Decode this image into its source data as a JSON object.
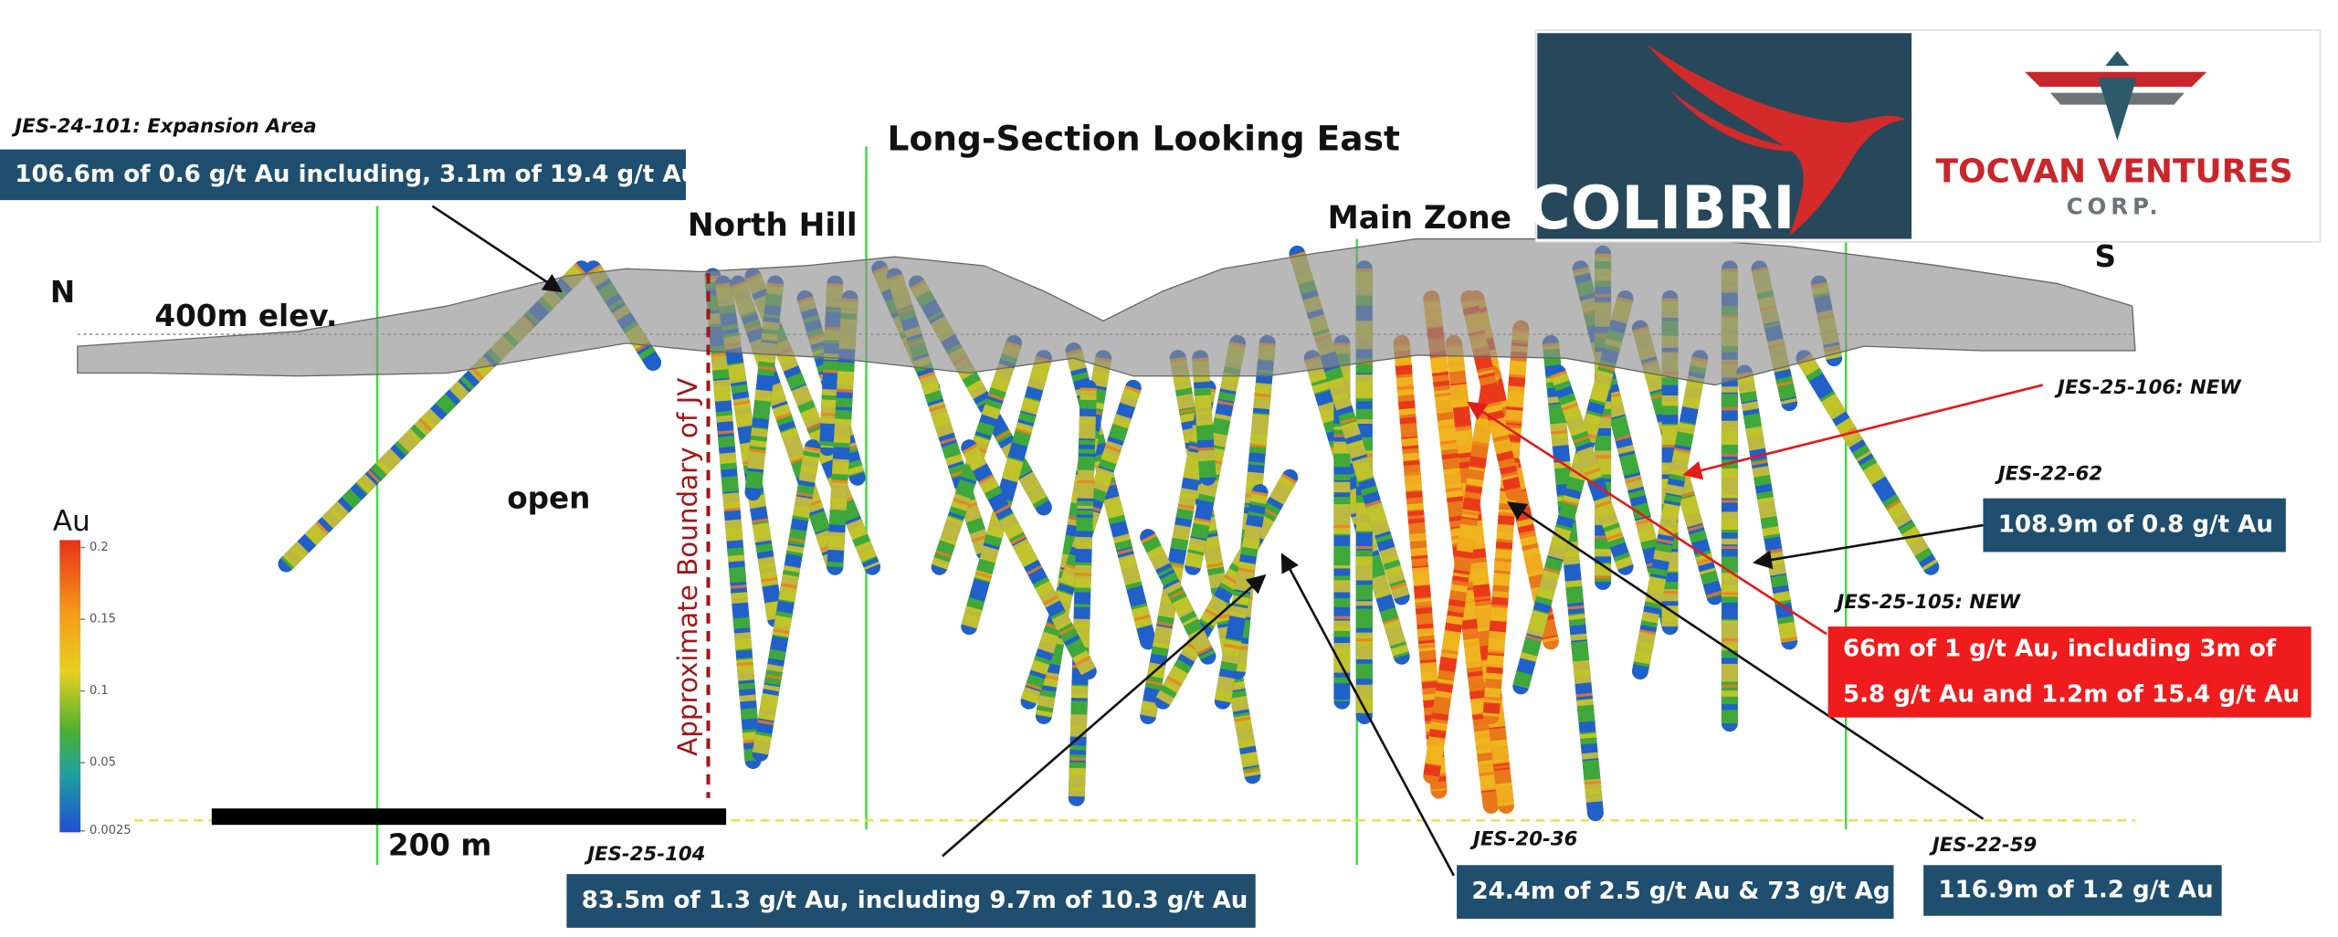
{
  "title": "Long-Section Looking East",
  "labels": {
    "north_hill": "North Hill",
    "main_zone": "Main Zone",
    "north": "N",
    "south": "S",
    "elevation": "400m elev.",
    "open": "open",
    "boundary": "Approximate Boundary of JV",
    "scale": "200 m"
  },
  "legend": {
    "title": "Au",
    "ticks": [
      0.2,
      0.15,
      0.1,
      0.05,
      0.0025
    ]
  },
  "logos": {
    "colibri": "COLIBRI",
    "tocvan": "TOCVAN VENTURES",
    "corp": "CORP."
  },
  "callouts": [
    {
      "hole": "JES-24-101: Expansion Area",
      "lines": [
        "106.6m of 0.6 g/t Au including, 3.1m of 19.4 g/t Au"
      ],
      "box_color": "#1f4e6e"
    },
    {
      "hole": "JES-25-104",
      "lines": [
        "83.5m of 1.3 g/t Au, including 9.7m of 10.3 g/t Au"
      ],
      "box_color": "#1f4e6e"
    },
    {
      "hole": "JES-20-36",
      "lines": [
        "24.4m of 2.5 g/t Au & 73 g/t Ag"
      ],
      "box_color": "#1f4e6e"
    },
    {
      "hole": "JES-22-59",
      "lines": [
        "116.9m of 1.2 g/t Au"
      ],
      "box_color": "#1f4e6e"
    },
    {
      "hole": "JES-22-62",
      "lines": [
        "108.9m of 0.8 g/t Au"
      ],
      "box_color": "#1f4e6e"
    },
    {
      "hole": "JES-25-105: NEW",
      "lines": [
        "66m of 1 g/t Au, including 3m of",
        "5.8 g/t Au and 1.2m of 15.4 g/t Au"
      ],
      "box_color": "#ee1c1c"
    },
    {
      "hole": "JES-25-106: NEW",
      "lines": [],
      "box_color": "#ee1c1c"
    }
  ]
}
